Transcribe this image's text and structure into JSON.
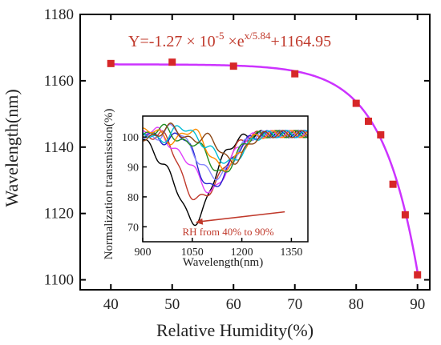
{
  "chart_data": [
    {
      "type": "scatter",
      "xlabel": "Relative Humidity(%)",
      "ylabel": "Wavelength(nm)",
      "xlim": [
        35,
        92
      ],
      "ylim": [
        1097,
        1180
      ],
      "x_ticks": [
        40,
        50,
        60,
        70,
        80,
        90
      ],
      "y_ticks": [
        1100,
        1120,
        1140,
        1160,
        1180
      ],
      "marker_color": "#d62728",
      "fit_color": "#cc33ff",
      "fit_equation_parts": {
        "prefix": "Y=-1.27 × 10",
        "exp1": "-5",
        "mid": " ×e",
        "exp2": "x/5.84",
        "suffix": "+1164.95"
      },
      "fit_params": {
        "a": -1.27e-05,
        "t": 5.84,
        "c": 1164.95
      },
      "points": [
        {
          "x": 40,
          "y": 1165.2
        },
        {
          "x": 50,
          "y": 1165.6
        },
        {
          "x": 60,
          "y": 1164.4
        },
        {
          "x": 70,
          "y": 1162.1
        },
        {
          "x": 80,
          "y": 1153.2
        },
        {
          "x": 82,
          "y": 1147.8
        },
        {
          "x": 84,
          "y": 1143.7
        },
        {
          "x": 86,
          "y": 1128.8
        },
        {
          "x": 88,
          "y": 1119.6
        },
        {
          "x": 90,
          "y": 1101.5
        }
      ]
    },
    {
      "type": "line",
      "xlabel": "Wavelength(nm)",
      "ylabel": "Normalization transmission(%)",
      "xlim": [
        900,
        1400
      ],
      "ylim": [
        65,
        107
      ],
      "x_ticks": [
        900,
        1050,
        1200,
        1350
      ],
      "y_ticks": [
        70,
        80,
        90,
        100
      ],
      "annotation": "RH from 40% to 90%",
      "annotation_color": "#c0392b",
      "series": [
        {
          "color": "#000000",
          "min_x": 1050,
          "min_y": 72,
          "width": 85
        },
        {
          "color": "#c0392b",
          "min_x": 1080,
          "min_y": 78,
          "width": 80
        },
        {
          "color": "#e040fb",
          "min_x": 1100,
          "min_y": 81,
          "width": 75
        },
        {
          "color": "#2222cc",
          "min_x": 1115,
          "min_y": 83,
          "width": 70
        },
        {
          "color": "#8888ff",
          "min_x": 1125,
          "min_y": 85,
          "width": 65
        },
        {
          "color": "#228b22",
          "min_x": 1135,
          "min_y": 87,
          "width": 62
        },
        {
          "color": "#ff8c00",
          "min_x": 1150,
          "min_y": 89,
          "width": 60
        },
        {
          "color": "#00bcd4",
          "min_x": 1160,
          "min_y": 90,
          "width": 58
        },
        {
          "color": "#8b4513",
          "min_x": 1170,
          "min_y": 91,
          "width": 55
        }
      ]
    }
  ]
}
